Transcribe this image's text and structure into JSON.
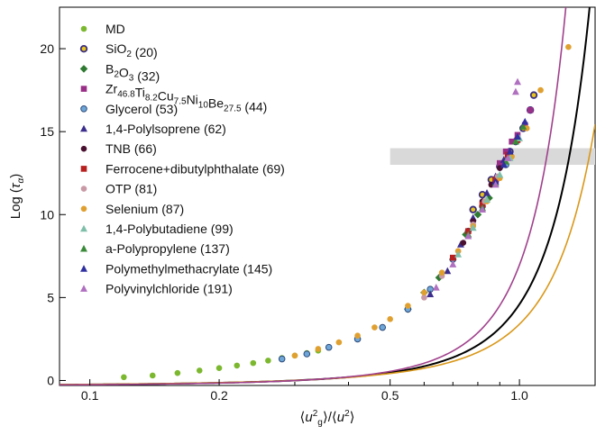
{
  "chart_data": {
    "type": "scatter",
    "x_scale": "log",
    "xlim": [
      0.085,
      1.5
    ],
    "ylim": [
      -0.3,
      22.5
    ],
    "xlabel": "⟨u_g²⟩/⟨u²⟩",
    "ylabel": "Log (τ_α)",
    "x_ticks": [
      {
        "value": 0.1,
        "label": "0.1"
      },
      {
        "value": 0.2,
        "label": "0.2"
      },
      {
        "value": 0.5,
        "label": "0.5"
      },
      {
        "value": 1.0,
        "label": "1.0"
      }
    ],
    "y_ticks": [
      {
        "value": 0,
        "label": "0"
      },
      {
        "value": 5,
        "label": "5"
      },
      {
        "value": 10,
        "label": "10"
      },
      {
        "value": 15,
        "label": "15"
      },
      {
        "value": 20,
        "label": "20"
      }
    ],
    "grid": false,
    "legend_position": "top-left",
    "shaded_band": {
      "y_from": 13,
      "y_to": 14,
      "x_from": 0.5,
      "color": "#d9d9d9"
    },
    "curves": [
      {
        "id": "fit-black",
        "color": "#000000",
        "y0": -0.3,
        "k": 1.02,
        "p": 3.3
      },
      {
        "id": "fit-orange",
        "color": "#d9981a",
        "y0": -0.3,
        "k": 1.25,
        "p": 2.8
      },
      {
        "id": "fit-purple",
        "color": "#a0408c",
        "y0": -0.3,
        "k": 0.78,
        "p": 4.0
      }
    ],
    "series": [
      {
        "name": "MD",
        "marker": "circle",
        "color": "#7cb82f",
        "points": [
          [
            0.12,
            0.2
          ],
          [
            0.14,
            0.3
          ],
          [
            0.16,
            0.45
          ],
          [
            0.18,
            0.6
          ],
          [
            0.2,
            0.75
          ],
          [
            0.22,
            0.9
          ],
          [
            0.24,
            1.05
          ],
          [
            0.26,
            1.2
          ],
          [
            0.28,
            1.35
          ],
          [
            0.3,
            1.5
          ],
          [
            0.32,
            1.65
          ],
          [
            0.34,
            1.8
          ],
          [
            0.36,
            2.0
          ]
        ]
      },
      {
        "name": "SiO<sub>2</sub> (20)",
        "marker": "circle-ring",
        "color": "#3b2e7e",
        "ring": "#e8c51e",
        "points": [
          [
            0.78,
            10.3
          ],
          [
            0.82,
            11.2
          ],
          [
            0.86,
            12.1
          ],
          [
            0.9,
            12.9
          ],
          [
            0.95,
            13.8
          ],
          [
            0.98,
            14.4
          ],
          [
            1.02,
            15.2
          ],
          [
            1.06,
            16.3
          ],
          [
            1.08,
            17.2
          ]
        ]
      },
      {
        "name": "B<sub>2</sub>O<sub>3</sub> (32)",
        "marker": "diamond",
        "color": "#2f7a32",
        "points": [
          [
            0.55,
            4.3
          ],
          [
            0.6,
            5.3
          ],
          [
            0.65,
            6.2
          ],
          [
            0.7,
            7.3
          ],
          [
            0.75,
            8.8
          ],
          [
            0.8,
            10.0
          ],
          [
            0.85,
            11.0
          ]
        ]
      },
      {
        "name": "Zr<sub>46.8</sub>Ti<sub>8.2</sub>Cu<sub>7.5</sub>Ni<sub>10</sub>Be<sub>27.5</sub> (44)",
        "marker": "square",
        "color": "#9a2f88",
        "points": [
          [
            0.9,
            13.1
          ],
          [
            0.93,
            13.8
          ],
          [
            0.96,
            14.4
          ],
          [
            0.99,
            14.8
          ],
          [
            1.03,
            15.4
          ],
          [
            1.06,
            16.3
          ]
        ]
      },
      {
        "name": "Glycerol (53)",
        "marker": "circle-edge",
        "color": "#6fa6d8",
        "edge": "#2b4a7a",
        "points": [
          [
            0.28,
            1.3
          ],
          [
            0.32,
            1.6
          ],
          [
            0.36,
            2.0
          ],
          [
            0.42,
            2.5
          ],
          [
            0.48,
            3.2
          ],
          [
            0.55,
            4.3
          ],
          [
            0.62,
            5.5
          ],
          [
            0.7,
            7.3
          ],
          [
            0.76,
            9.0
          ],
          [
            0.82,
            10.5
          ],
          [
            0.88,
            12.0
          ],
          [
            0.93,
            13.0
          ]
        ]
      },
      {
        "name": "1,4-Polylsoprene (62)",
        "marker": "triangle",
        "color": "#3b2e8c",
        "points": [
          [
            0.62,
            5.2
          ],
          [
            0.68,
            6.6
          ],
          [
            0.73,
            8.2
          ],
          [
            0.78,
            9.8
          ],
          [
            0.84,
            11.3
          ],
          [
            0.88,
            12.3
          ],
          [
            0.92,
            13.3
          ]
        ]
      },
      {
        "name": "TNB (66)",
        "marker": "circle",
        "color": "#4a1030",
        "points": [
          [
            0.74,
            8.3
          ],
          [
            0.78,
            9.6
          ],
          [
            0.82,
            10.8
          ],
          [
            0.86,
            11.8
          ],
          [
            0.9,
            12.8
          ],
          [
            0.94,
            13.5
          ]
        ]
      },
      {
        "name": "Ferrocene+dibutylphthalate (69)",
        "marker": "square",
        "color": "#b82020",
        "points": [
          [
            0.7,
            7.4
          ],
          [
            0.76,
            9.0
          ],
          [
            0.82,
            10.6
          ],
          [
            0.88,
            12.1
          ],
          [
            0.94,
            13.6
          ],
          [
            0.99,
            14.5
          ]
        ]
      },
      {
        "name": "OTP (81)",
        "marker": "circle",
        "color": "#c99aa6",
        "points": [
          [
            0.6,
            5.0
          ],
          [
            0.66,
            6.3
          ],
          [
            0.72,
            7.8
          ],
          [
            0.78,
            9.4
          ],
          [
            0.83,
            10.8
          ],
          [
            0.89,
            12.3
          ]
        ]
      },
      {
        "name": "Selenium (87)",
        "marker": "circle",
        "color": "#e0a030",
        "points": [
          [
            0.3,
            1.5
          ],
          [
            0.34,
            1.9
          ],
          [
            0.38,
            2.3
          ],
          [
            0.42,
            2.7
          ],
          [
            0.46,
            3.2
          ],
          [
            0.5,
            3.7
          ],
          [
            0.55,
            4.5
          ],
          [
            0.6,
            5.3
          ],
          [
            0.66,
            6.5
          ],
          [
            0.72,
            7.8
          ],
          [
            0.78,
            9.3
          ],
          [
            0.84,
            10.8
          ],
          [
            0.9,
            12.2
          ],
          [
            0.96,
            13.5
          ],
          [
            1.04,
            15.2
          ],
          [
            1.12,
            17.5
          ],
          [
            1.3,
            20.1
          ]
        ]
      },
      {
        "name": "1,4-Polybutadiene (99)",
        "marker": "triangle",
        "color": "#7fbfaa",
        "points": [
          [
            0.72,
            7.6
          ],
          [
            0.78,
            9.2
          ],
          [
            0.84,
            10.9
          ],
          [
            0.9,
            12.4
          ],
          [
            0.95,
            13.4
          ],
          [
            1.0,
            14.6
          ]
        ]
      },
      {
        "name": "a-Polypropylene (137)",
        "marker": "triangle",
        "color": "#3a8a3a",
        "points": [
          [
            0.76,
            8.8
          ],
          [
            0.82,
            10.4
          ],
          [
            0.88,
            11.9
          ],
          [
            0.93,
            13.2
          ],
          [
            0.98,
            14.4
          ],
          [
            1.02,
            15.3
          ]
        ]
      },
      {
        "name": "Polymethylmethacrylate (145)",
        "marker": "triangle",
        "color": "#3030a0",
        "points": [
          [
            0.88,
            12.0
          ],
          [
            0.92,
            13.0
          ],
          [
            0.95,
            13.8
          ],
          [
            0.99,
            14.7
          ],
          [
            1.03,
            15.6
          ]
        ]
      },
      {
        "name": "Polyvinylchloride (191)",
        "marker": "triangle",
        "color": "#b070c0",
        "points": [
          [
            0.64,
            5.6
          ],
          [
            0.7,
            7.0
          ],
          [
            0.76,
            8.7
          ],
          [
            0.82,
            10.3
          ],
          [
            0.88,
            11.8
          ],
          [
            0.94,
            13.4
          ],
          [
            0.98,
            17.4
          ],
          [
            0.99,
            18.0
          ]
        ]
      }
    ]
  }
}
